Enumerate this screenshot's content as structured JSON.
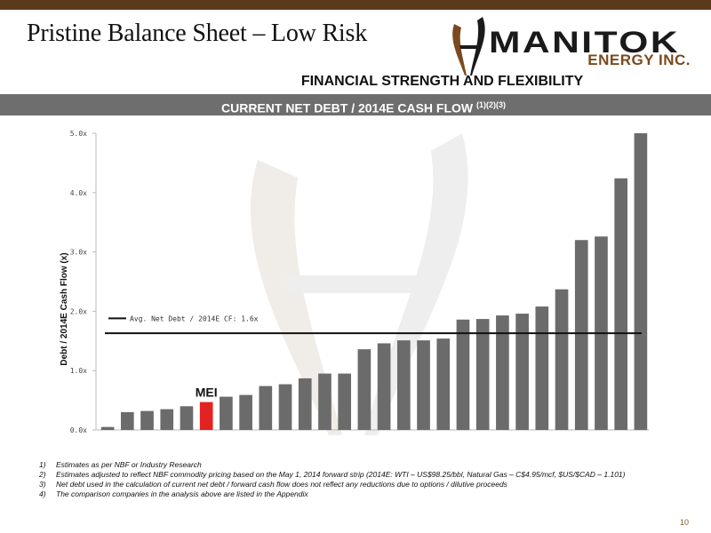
{
  "slide": {
    "title": "Pristine Balance Sheet – Low Risk",
    "subtitle": "FINANCIAL STRENGTH AND FLEXIBILITY",
    "banner_title": "CURRENT NET DEBT / 2014E CASH FLOW",
    "banner_superscript": "(1)(2)(3)",
    "page_number": "10"
  },
  "logo": {
    "name": "MANITOK",
    "sub": "ENERGY INC."
  },
  "colors": {
    "top_bar": "#5b3a1c",
    "banner": "#6e6e6e",
    "bar": "#6b6b6b",
    "highlight": "#e32222",
    "avg_line": "#111111"
  },
  "chart_data": {
    "type": "bar",
    "ylabel": "Debt / 2014E Cash Flow (x)",
    "ylim": [
      0,
      5
    ],
    "yticks": [
      "0.0x",
      "1.0x",
      "2.0x",
      "3.0x",
      "4.0x",
      "5.0x"
    ],
    "values": [
      0.05,
      0.3,
      0.32,
      0.35,
      0.4,
      0.47,
      0.56,
      0.59,
      0.74,
      0.77,
      0.87,
      0.95,
      0.95,
      1.36,
      1.46,
      1.51,
      1.51,
      1.54,
      1.86,
      1.87,
      1.93,
      1.96,
      2.08,
      2.37,
      3.2,
      3.26,
      4.24,
      5.0
    ],
    "highlight_index": 5,
    "highlight_label": "MEI",
    "average": {
      "label": "Avg. Net Debt / 2014E CF: 1.6x",
      "value": 1.63
    }
  },
  "footnotes": [
    {
      "num": "1)",
      "text": "Estimates as per NBF or Industry Research"
    },
    {
      "num": "2)",
      "text": "Estimates adjusted to reflect NBF commodity pricing based on the May 1, 2014 forward strip (2014E: WTI – US$98.25/bbl, Natural Gas – C$4.95/mcf, $US/$CAD – 1.101)"
    },
    {
      "num": "3)",
      "text": "Net debt used in the calculation of current net debt / forward cash flow does not reflect any reductions due to options / dilutive proceeds"
    },
    {
      "num": "4)",
      "text": "The comparison companies in the analysis above are listed in the Appendix"
    }
  ]
}
